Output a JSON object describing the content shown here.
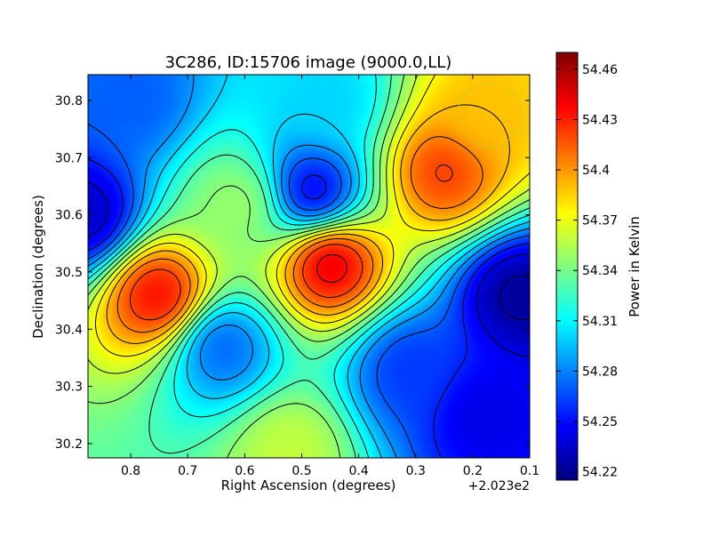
{
  "chart_data": {
    "type": "heatmap",
    "title": "3C286, ID:15706 image (9000.0,LL)",
    "xlabel": "Right Ascension (degrees)",
    "ylabel": "Declination (degrees)",
    "x_offset_label": "+2.023e2",
    "colorbar_label": "Power in Kelvin",
    "xlim": [
      0.875,
      0.1
    ],
    "ylim": [
      30.175,
      30.845
    ],
    "x_ticks": [
      {
        "value": 0.8,
        "label": "0.8"
      },
      {
        "value": 0.7,
        "label": "0.7"
      },
      {
        "value": 0.6,
        "label": "0.6"
      },
      {
        "value": 0.5,
        "label": "0.5"
      },
      {
        "value": 0.4,
        "label": "0.4"
      },
      {
        "value": 0.3,
        "label": "0.3"
      },
      {
        "value": 0.2,
        "label": "0.2"
      },
      {
        "value": 0.1,
        "label": "0.1"
      }
    ],
    "y_ticks": [
      {
        "value": 30.8,
        "label": "30.8"
      },
      {
        "value": 30.7,
        "label": "30.7"
      },
      {
        "value": 30.6,
        "label": "30.6"
      },
      {
        "value": 30.5,
        "label": "30.5"
      },
      {
        "value": 30.4,
        "label": "30.4"
      },
      {
        "value": 30.3,
        "label": "30.3"
      },
      {
        "value": 30.2,
        "label": "30.2"
      }
    ],
    "colorbar_range": [
      54.215,
      54.47
    ],
    "colorbar_ticks": [
      {
        "value": 54.22,
        "label": "54.22"
      },
      {
        "value": 54.25,
        "label": "54.25"
      },
      {
        "value": 54.28,
        "label": "54.28"
      },
      {
        "value": 54.31,
        "label": "54.31"
      },
      {
        "value": 54.34,
        "label": "54.34"
      },
      {
        "value": 54.37,
        "label": "54.37"
      },
      {
        "value": 54.4,
        "label": "54.4"
      },
      {
        "value": 54.43,
        "label": "54.43"
      },
      {
        "value": 54.46,
        "label": "54.46"
      }
    ],
    "colormap": "jet",
    "contours": "black lines",
    "field_base": 54.3,
    "features": [
      {
        "ra": 0.75,
        "dec": 30.46,
        "value": 54.44
      },
      {
        "ra": 0.45,
        "dec": 30.515,
        "value": 54.45
      },
      {
        "ra": 0.25,
        "dec": 30.675,
        "value": 54.425
      },
      {
        "ra": 0.18,
        "dec": 30.77,
        "value": 54.39
      },
      {
        "ra": 0.61,
        "dec": 30.62,
        "value": 54.35
      },
      {
        "ra": 0.52,
        "dec": 30.19,
        "value": 54.36
      },
      {
        "ra": 0.48,
        "dec": 30.64,
        "value": 54.24
      },
      {
        "ra": 0.88,
        "dec": 30.6,
        "value": 54.23
      },
      {
        "ra": 0.12,
        "dec": 30.46,
        "value": 54.22
      },
      {
        "ra": 0.64,
        "dec": 30.37,
        "value": 54.27
      },
      {
        "ra": 0.31,
        "dec": 30.33,
        "value": 54.26
      },
      {
        "ra": 0.18,
        "dec": 30.25,
        "value": 54.24
      },
      {
        "ra": 0.45,
        "dec": 30.8,
        "value": 54.3
      },
      {
        "ra": 0.8,
        "dec": 30.8,
        "value": 54.27
      }
    ]
  }
}
